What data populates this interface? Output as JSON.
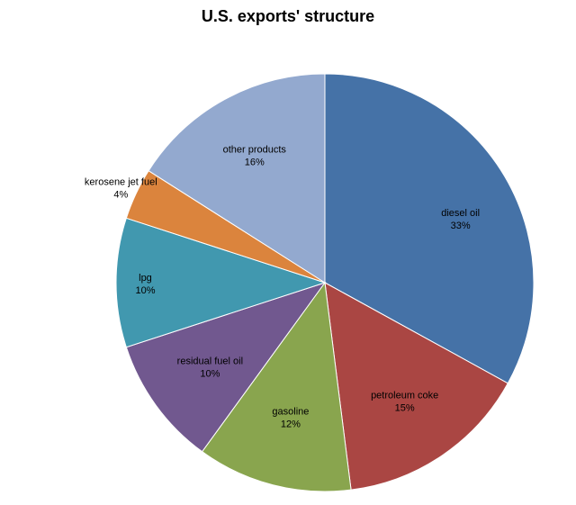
{
  "chart_data": {
    "type": "pie",
    "title": "U.S. exports' structure",
    "start_angle_deg": 0,
    "direction": "clockwise",
    "slices": [
      {
        "label": "diesel oil",
        "value": 33,
        "percent_label": "33%",
        "color": "#4572A7"
      },
      {
        "label": "petroleum coke",
        "value": 15,
        "percent_label": "15%",
        "color": "#AA4643"
      },
      {
        "label": "gasoline",
        "value": 12,
        "percent_label": "12%",
        "color": "#89A54E"
      },
      {
        "label": "residual fuel oil",
        "value": 10,
        "percent_label": "10%",
        "color": "#71588F"
      },
      {
        "label": "lpg",
        "value": 10,
        "percent_label": "10%",
        "color": "#4198AF"
      },
      {
        "label": "kerosene jet fuel",
        "value": 4,
        "percent_label": "4%",
        "color": "#DB843D"
      },
      {
        "label": "other products",
        "value": 16,
        "percent_label": "16%",
        "color": "#93A9CF"
      }
    ]
  }
}
